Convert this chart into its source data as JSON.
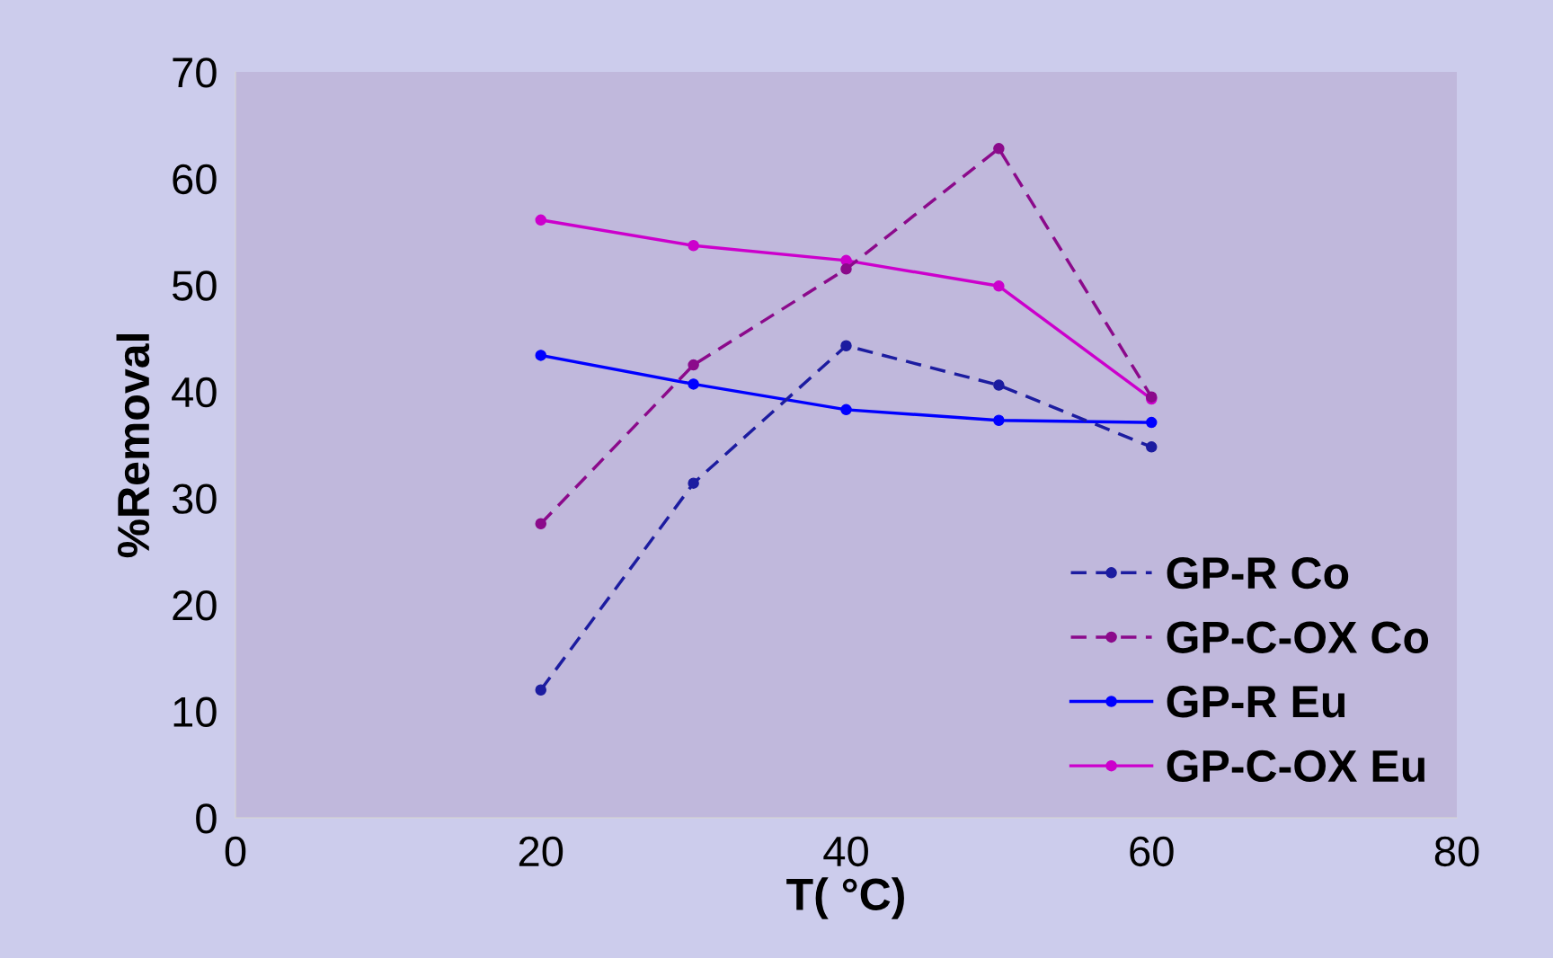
{
  "chart_data": {
    "type": "line",
    "xlabel": "T( °C)",
    "ylabel": "%Removal",
    "x": [
      20,
      30,
      40,
      50,
      60
    ],
    "series": [
      {
        "name": "GP-R Co",
        "color": "#1c1ca0",
        "line_style": "dashed",
        "marker": "circle",
        "values": [
          12.0,
          31.4,
          44.3,
          40.6,
          34.8
        ]
      },
      {
        "name": "GP-C-OX Co",
        "color": "#8b0a8b",
        "line_style": "dashed",
        "marker": "circle",
        "values": [
          27.6,
          42.5,
          51.5,
          62.8,
          39.5
        ]
      },
      {
        "name": "GP-R Eu",
        "color": "#0000ff",
        "line_style": "solid",
        "marker": "circle",
        "values": [
          43.4,
          40.7,
          38.3,
          37.3,
          37.1
        ]
      },
      {
        "name": "GP-C-OX Eu",
        "color": "#cc00cc",
        "line_style": "solid",
        "marker": "circle",
        "values": [
          56.1,
          53.7,
          52.3,
          49.9,
          39.3
        ]
      }
    ],
    "xlim": [
      0,
      80
    ],
    "xticks": [
      0,
      20,
      40,
      60,
      80
    ],
    "ylim": [
      0,
      70
    ],
    "yticks": [
      0,
      10,
      20,
      30,
      40,
      50,
      60,
      70
    ],
    "grid": false,
    "legend": "bottom right"
  }
}
